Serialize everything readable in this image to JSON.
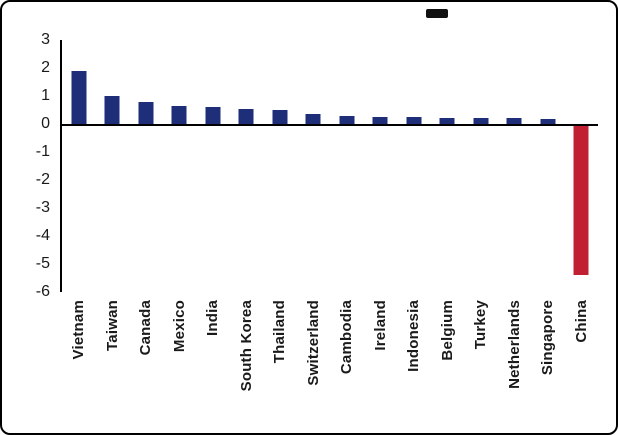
{
  "chart_data": {
    "type": "bar",
    "title": "",
    "xlabel": "",
    "ylabel": "",
    "categories": [
      "Vietnam",
      "Taiwan",
      "Canada",
      "Mexico",
      "India",
      "South Korea",
      "Thailand",
      "Switzerland",
      "Cambodia",
      "Ireland",
      "Indonesia",
      "Belgium",
      "Turkey",
      "Netherlands",
      "Singapore",
      "China"
    ],
    "values": [
      1.9,
      1.0,
      0.8,
      0.65,
      0.6,
      0.55,
      0.5,
      0.35,
      0.3,
      0.25,
      0.25,
      0.22,
      0.2,
      0.2,
      0.18,
      -5.4
    ],
    "ylim": [
      -6,
      3
    ],
    "yticks": [
      3,
      2,
      1,
      0,
      -1,
      -2,
      -3,
      -4,
      -5,
      -6
    ],
    "grid": false,
    "legend": false,
    "bar_color": "#1f2e78",
    "highlight_color": "#c02032",
    "highlight_category": "China"
  },
  "decor": {
    "top_right_mark": ""
  }
}
